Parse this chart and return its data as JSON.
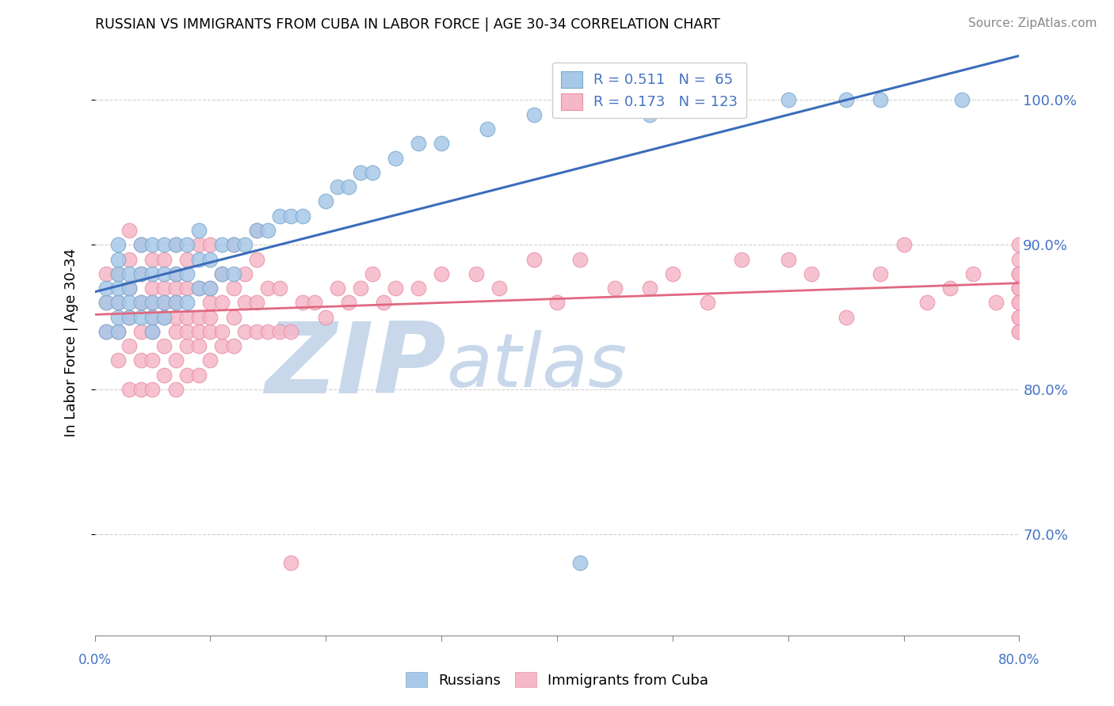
{
  "title": "RUSSIAN VS IMMIGRANTS FROM CUBA IN LABOR FORCE | AGE 30-34 CORRELATION CHART",
  "source": "Source: ZipAtlas.com",
  "ylabel": "In Labor Force | Age 30-34",
  "yticks": [
    "70.0%",
    "80.0%",
    "90.0%",
    "100.0%"
  ],
  "ytick_vals": [
    0.7,
    0.8,
    0.9,
    1.0
  ],
  "xmin": 0.0,
  "xmax": 0.8,
  "ymin": 0.63,
  "ymax": 1.035,
  "legend_entry1": "R = 0.511   N =  65",
  "legend_entry2": "R = 0.173   N = 123",
  "series1_color": "#a8c8e8",
  "series2_color": "#f5b8c8",
  "series1_edgecolor": "#7aaace",
  "series2_edgecolor": "#e890a8",
  "line1_color": "#3a6cba",
  "line2_color": "#e06880",
  "series1_label": "Russians",
  "series2_label": "Immigrants from Cuba",
  "background_color": "#ffffff",
  "grid_color": "#d0d0d0",
  "watermark_zip": "ZIP",
  "watermark_atlas": "atlas",
  "watermark_color": "#c8d8ea",
  "russians_x": [
    0.01,
    0.01,
    0.01,
    0.02,
    0.02,
    0.02,
    0.02,
    0.02,
    0.02,
    0.02,
    0.03,
    0.03,
    0.03,
    0.03,
    0.04,
    0.04,
    0.04,
    0.04,
    0.05,
    0.05,
    0.05,
    0.05,
    0.05,
    0.06,
    0.06,
    0.06,
    0.06,
    0.07,
    0.07,
    0.07,
    0.08,
    0.08,
    0.08,
    0.09,
    0.09,
    0.09,
    0.1,
    0.1,
    0.11,
    0.11,
    0.12,
    0.12,
    0.13,
    0.14,
    0.15,
    0.16,
    0.17,
    0.18,
    0.2,
    0.21,
    0.22,
    0.23,
    0.24,
    0.26,
    0.28,
    0.3,
    0.34,
    0.38,
    0.42,
    0.48,
    0.55,
    0.6,
    0.65,
    0.68,
    0.75
  ],
  "russians_y": [
    0.84,
    0.86,
    0.87,
    0.84,
    0.85,
    0.86,
    0.87,
    0.88,
    0.89,
    0.9,
    0.85,
    0.86,
    0.87,
    0.88,
    0.85,
    0.86,
    0.88,
    0.9,
    0.84,
    0.85,
    0.86,
    0.88,
    0.9,
    0.85,
    0.86,
    0.88,
    0.9,
    0.86,
    0.88,
    0.9,
    0.86,
    0.88,
    0.9,
    0.87,
    0.89,
    0.91,
    0.87,
    0.89,
    0.88,
    0.9,
    0.88,
    0.9,
    0.9,
    0.91,
    0.91,
    0.92,
    0.92,
    0.92,
    0.93,
    0.94,
    0.94,
    0.95,
    0.95,
    0.96,
    0.97,
    0.97,
    0.98,
    0.99,
    0.68,
    0.99,
    1.0,
    1.0,
    1.0,
    1.0,
    1.0
  ],
  "cuba_x": [
    0.01,
    0.01,
    0.01,
    0.02,
    0.02,
    0.02,
    0.02,
    0.03,
    0.03,
    0.03,
    0.03,
    0.03,
    0.03,
    0.04,
    0.04,
    0.04,
    0.04,
    0.04,
    0.04,
    0.05,
    0.05,
    0.05,
    0.05,
    0.05,
    0.05,
    0.05,
    0.06,
    0.06,
    0.06,
    0.06,
    0.06,
    0.06,
    0.07,
    0.07,
    0.07,
    0.07,
    0.07,
    0.07,
    0.07,
    0.07,
    0.08,
    0.08,
    0.08,
    0.08,
    0.08,
    0.08,
    0.09,
    0.09,
    0.09,
    0.09,
    0.09,
    0.09,
    0.1,
    0.1,
    0.1,
    0.1,
    0.1,
    0.1,
    0.11,
    0.11,
    0.11,
    0.11,
    0.12,
    0.12,
    0.12,
    0.12,
    0.13,
    0.13,
    0.13,
    0.14,
    0.14,
    0.14,
    0.14,
    0.15,
    0.15,
    0.16,
    0.16,
    0.17,
    0.17,
    0.18,
    0.19,
    0.2,
    0.21,
    0.22,
    0.23,
    0.24,
    0.25,
    0.26,
    0.28,
    0.3,
    0.33,
    0.35,
    0.38,
    0.4,
    0.42,
    0.45,
    0.48,
    0.5,
    0.53,
    0.56,
    0.6,
    0.62,
    0.65,
    0.68,
    0.7,
    0.72,
    0.74,
    0.76,
    0.78,
    0.8,
    0.8,
    0.8,
    0.8,
    0.8,
    0.8,
    0.8,
    0.8,
    0.8,
    0.8,
    0.8,
    0.8,
    0.8,
    0.8
  ],
  "cuba_y": [
    0.84,
    0.86,
    0.88,
    0.82,
    0.84,
    0.86,
    0.88,
    0.8,
    0.83,
    0.85,
    0.87,
    0.89,
    0.91,
    0.8,
    0.82,
    0.84,
    0.86,
    0.88,
    0.9,
    0.8,
    0.82,
    0.84,
    0.85,
    0.86,
    0.87,
    0.89,
    0.81,
    0.83,
    0.85,
    0.86,
    0.87,
    0.89,
    0.8,
    0.82,
    0.84,
    0.85,
    0.86,
    0.87,
    0.88,
    0.9,
    0.81,
    0.83,
    0.84,
    0.85,
    0.87,
    0.89,
    0.81,
    0.83,
    0.84,
    0.85,
    0.87,
    0.9,
    0.82,
    0.84,
    0.85,
    0.86,
    0.87,
    0.9,
    0.83,
    0.84,
    0.86,
    0.88,
    0.83,
    0.85,
    0.87,
    0.9,
    0.84,
    0.86,
    0.88,
    0.84,
    0.86,
    0.89,
    0.91,
    0.84,
    0.87,
    0.84,
    0.87,
    0.68,
    0.84,
    0.86,
    0.86,
    0.85,
    0.87,
    0.86,
    0.87,
    0.88,
    0.86,
    0.87,
    0.87,
    0.88,
    0.88,
    0.87,
    0.89,
    0.86,
    0.89,
    0.87,
    0.87,
    0.88,
    0.86,
    0.89,
    0.89,
    0.88,
    0.85,
    0.88,
    0.9,
    0.86,
    0.87,
    0.88,
    0.86,
    0.84,
    0.87,
    0.88,
    0.89,
    0.85,
    0.87,
    0.86,
    0.88,
    0.9,
    0.84,
    0.87,
    0.85,
    0.86,
    0.88
  ]
}
